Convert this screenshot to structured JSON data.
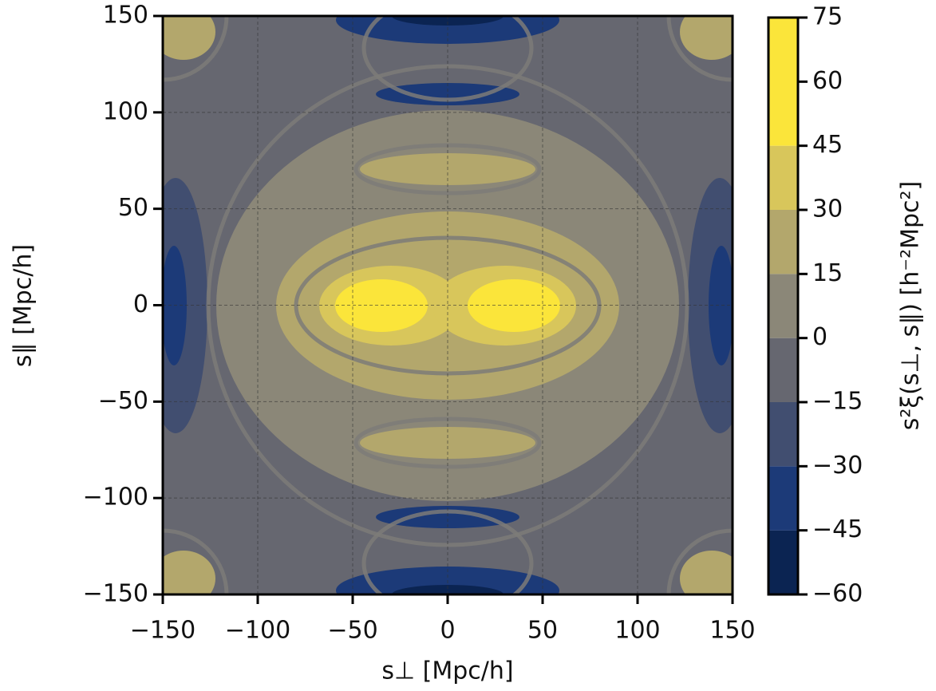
{
  "chart_data": {
    "type": "contour",
    "xlabel": "s⊥ [Mpc/h]",
    "ylabel": "s∥ [Mpc/h]",
    "xlim": [
      -150,
      150
    ],
    "ylim": [
      -150,
      150
    ],
    "xticks": [
      {
        "value": -150,
        "label": "−150"
      },
      {
        "value": -100,
        "label": "−100"
      },
      {
        "value": -50,
        "label": "−50"
      },
      0,
      50,
      100,
      150
    ],
    "yticks": [
      {
        "value": -150,
        "label": "−150"
      },
      {
        "value": -100,
        "label": "−100"
      },
      {
        "value": -50,
        "label": "−50"
      },
      0,
      50,
      100,
      150
    ],
    "grid": true,
    "colorbar": {
      "label": "s²ξ(s⊥, s∥) [h⁻²Mpc²]",
      "levels": [
        -60,
        -45,
        -30,
        -15,
        0,
        15,
        30,
        45,
        75
      ],
      "colors": [
        "#0b2452",
        "#1c3a78",
        "#414e70",
        "#666770",
        "#8b8778",
        "#b3a76c",
        "#d8c65b",
        "#fbe53a"
      ],
      "lim": [
        -60,
        75
      ],
      "ticks": [
        {
          "value": -60,
          "label": "−60"
        },
        {
          "value": -45,
          "label": "−45"
        },
        {
          "value": -30,
          "label": "−30"
        },
        {
          "value": -15,
          "label": "−15"
        },
        0,
        15,
        30,
        45,
        60,
        75
      ]
    }
  }
}
